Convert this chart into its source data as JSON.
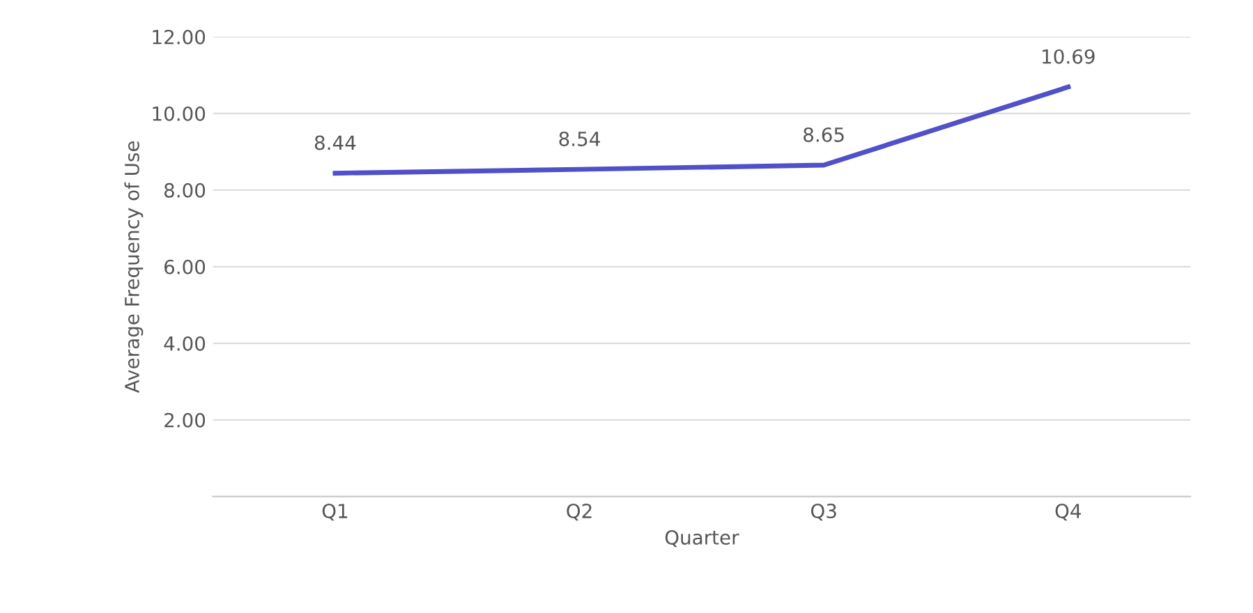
{
  "chart_data": {
    "type": "line",
    "xlabel": "Quarter",
    "ylabel": "Average Frequency of Use",
    "categories": [
      "Q1",
      "Q2",
      "Q3",
      "Q4"
    ],
    "series": [
      {
        "color": "#5050c8",
        "values": [
          8.44,
          8.54,
          8.65,
          10.69
        ]
      }
    ],
    "data_labels": true,
    "ylim": [
      0,
      12
    ],
    "yticks": [
      {
        "value": 0,
        "label": null
      },
      {
        "value": 2,
        "label": "2.00"
      },
      {
        "value": 4,
        "label": "4.00"
      },
      {
        "value": 6,
        "label": "6.00"
      },
      {
        "value": 8,
        "label": "8.00"
      },
      {
        "value": 10,
        "label": "10.00"
      },
      {
        "value": 12,
        "label": "12.00"
      }
    ],
    "grid": "y",
    "legend": false,
    "marker": "none",
    "line_style": "solid"
  }
}
